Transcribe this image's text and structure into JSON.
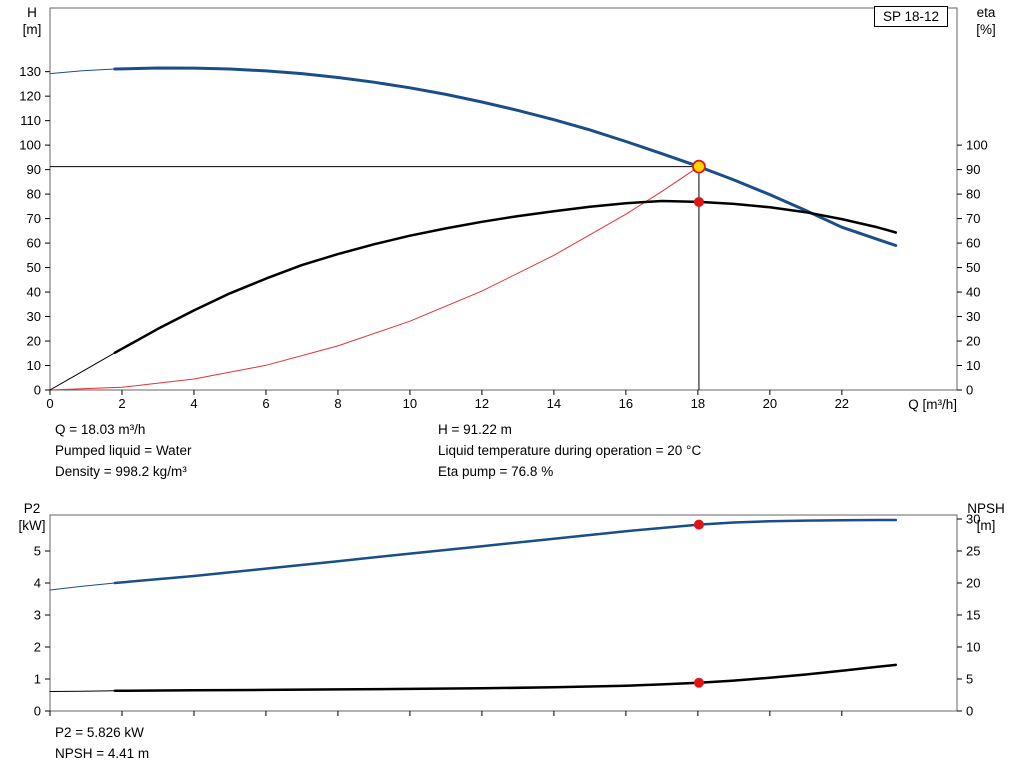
{
  "colors": {
    "curve_blue": "#1a4e8a",
    "curve_black": "#000000",
    "curve_red": "#dd3333",
    "marker_red": "#e01616",
    "marker_yellow": "#ffd800",
    "frame": "#666666",
    "tick": "#000000",
    "guide": "#000000"
  },
  "labels": {
    "h_axis": [
      "H",
      "[m]"
    ],
    "eta_axis": [
      "eta",
      "[%]"
    ],
    "p2_axis": [
      "P2",
      "[kW]"
    ],
    "npsh_axis": [
      "NPSH",
      "[m]"
    ]
  },
  "info_top": {
    "left": [
      "Q = 18.03 m³/h",
      "Pumped liquid = Water",
      "Density = 998.2 kg/m³"
    ],
    "right": [
      "H = 91.22 m",
      "Liquid temperature during operation = 20 °C",
      "Eta pump = 76.8 %"
    ]
  },
  "info_bottom": [
    "P2 = 5.826 kW",
    "NPSH = 4.41 m"
  ],
  "chart_data": [
    {
      "type": "line",
      "name": "head-efficiency-chart",
      "title": "SP 18-12",
      "xlabel": "Q [m³/h]",
      "ylabel_left": "H [m]",
      "ylabel_right": "eta [%]",
      "xlim": [
        0,
        25.2
      ],
      "ylim_left": [
        0,
        156
      ],
      "ylim_right": [
        0,
        156
      ],
      "x_ticks": [
        0,
        2,
        4,
        6,
        8,
        10,
        12,
        14,
        16,
        18,
        20,
        22
      ],
      "left_ticks": [
        0,
        10,
        20,
        30,
        40,
        50,
        60,
        70,
        80,
        90,
        100,
        110,
        120,
        130
      ],
      "right_ticks": [
        0,
        10,
        20,
        30,
        40,
        50,
        60,
        70,
        80,
        90,
        100
      ],
      "duty_point": {
        "q": 18.03,
        "h": 91.22,
        "eta": 76.8
      },
      "guides": [
        {
          "type": "h",
          "axis": "left",
          "y": 91.22,
          "x0": 0,
          "x1": 18.03
        },
        {
          "type": "v",
          "axis": "left",
          "x": 18.03,
          "y0": 0,
          "y1": 91.22
        }
      ],
      "series": [
        {
          "name": "system-curve",
          "axis": "left",
          "color": "curve_red",
          "width": 1,
          "x": [
            0,
            2,
            4,
            6,
            8,
            10,
            12,
            14,
            16,
            17,
            18.03
          ],
          "y": [
            0,
            1.1,
            4.5,
            10.1,
            18,
            28.1,
            40.4,
            55,
            71.8,
            81.1,
            91.22
          ]
        },
        {
          "name": "head-curve-leadin",
          "axis": "left",
          "color": "curve_blue",
          "width": 1,
          "x": [
            0,
            0.9,
            1.8
          ],
          "y": [
            129.2,
            130.4,
            131.1
          ]
        },
        {
          "name": "head-curve",
          "axis": "left",
          "color": "curve_blue",
          "width": 3,
          "x": [
            1.8,
            3,
            4,
            5,
            6,
            7,
            8,
            9,
            10,
            11,
            12,
            13,
            14,
            15,
            16,
            17,
            18.03,
            19,
            20,
            21,
            22,
            23,
            23.5
          ],
          "y": [
            131.1,
            131.5,
            131.45,
            131.1,
            130.3,
            129.2,
            127.6,
            125.7,
            123.4,
            120.7,
            117.6,
            114.2,
            110.4,
            106.2,
            101.5,
            96.5,
            91.22,
            85.8,
            79.8,
            73.3,
            66.5,
            61.5,
            59
          ]
        },
        {
          "name": "eta-curve-leadin",
          "axis": "right",
          "color": "curve_black",
          "width": 1,
          "x": [
            0,
            0.9,
            1.8
          ],
          "y": [
            0,
            7.6,
            15.2
          ]
        },
        {
          "name": "eta-curve",
          "axis": "right",
          "color": "curve_black",
          "width": 2.5,
          "x": [
            1.8,
            3,
            4,
            5,
            6,
            7,
            8,
            9,
            10,
            11,
            12,
            13,
            14,
            15,
            16,
            17,
            18.03,
            19,
            20,
            21,
            22,
            23,
            23.5
          ],
          "y": [
            15.2,
            25,
            32.5,
            39.5,
            45.5,
            51,
            55.5,
            59.5,
            63,
            66,
            68.7,
            71,
            73,
            74.8,
            76.3,
            77.2,
            76.8,
            76,
            74.6,
            72.6,
            69.8,
            66.4,
            64.3
          ]
        }
      ],
      "markers": [
        {
          "x": 18.03,
          "y": 91.22,
          "axis": "left",
          "style": "duty",
          "name": "duty-point-marker"
        },
        {
          "x": 18.03,
          "y": 76.8,
          "axis": "right",
          "style": "dot",
          "name": "eta-point-marker"
        }
      ]
    },
    {
      "type": "line",
      "name": "power-npsh-chart",
      "title": "",
      "xlabel": "",
      "ylabel_left": "P2 [kW]",
      "ylabel_right": "NPSH [m]",
      "xlim": [
        0,
        25.2
      ],
      "ylim_left": [
        0,
        6.125
      ],
      "ylim_right": [
        0,
        30.625
      ],
      "x_ticks": [
        0,
        2,
        4,
        6,
        8,
        10,
        12,
        14,
        16,
        18,
        20,
        22
      ],
      "left_ticks": [
        0,
        1,
        2,
        3,
        4,
        5
      ],
      "right_ticks": [
        0,
        5,
        10,
        15,
        20,
        25,
        30
      ],
      "duty_point": {
        "q": 18.03,
        "p2": 5.826,
        "npsh": 4.41
      },
      "guides": [],
      "series": [
        {
          "name": "p2-curve-leadin",
          "axis": "left",
          "color": "curve_blue",
          "width": 1,
          "x": [
            0,
            0.9,
            1.8
          ],
          "y": [
            3.78,
            3.9,
            4.0
          ]
        },
        {
          "name": "p2-curve",
          "axis": "left",
          "color": "curve_blue",
          "width": 2.5,
          "x": [
            1.8,
            4,
            6,
            8,
            10,
            12,
            14,
            16,
            18.03,
            19,
            20,
            21,
            22,
            23,
            23.5
          ],
          "y": [
            4.0,
            4.22,
            4.45,
            4.68,
            4.92,
            5.15,
            5.38,
            5.62,
            5.826,
            5.89,
            5.93,
            5.95,
            5.96,
            5.97,
            5.97
          ]
        },
        {
          "name": "npsh-curve-leadin",
          "axis": "right",
          "color": "curve_black",
          "width": 1,
          "x": [
            0,
            0.9,
            1.8
          ],
          "y": [
            3.05,
            3.1,
            3.15
          ]
        },
        {
          "name": "npsh-curve",
          "axis": "right",
          "color": "curve_black",
          "width": 2.5,
          "x": [
            1.8,
            4,
            6,
            8,
            10,
            12,
            14,
            16,
            17,
            18.03,
            19,
            20,
            21,
            22,
            23,
            23.5
          ],
          "y": [
            3.15,
            3.25,
            3.3,
            3.38,
            3.45,
            3.55,
            3.7,
            3.95,
            4.15,
            4.41,
            4.75,
            5.2,
            5.7,
            6.3,
            6.9,
            7.2
          ]
        }
      ],
      "markers": [
        {
          "x": 18.03,
          "y": 5.826,
          "axis": "left",
          "style": "dot",
          "name": "p2-point-marker"
        },
        {
          "x": 18.03,
          "y": 4.41,
          "axis": "right",
          "style": "dot",
          "name": "npsh-point-marker"
        }
      ]
    }
  ]
}
